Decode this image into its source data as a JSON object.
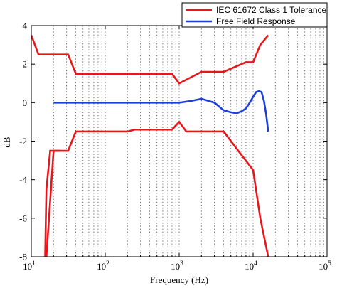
{
  "chart_data": {
    "type": "line",
    "xlabel": "Frequency (Hz)",
    "ylabel": "dB",
    "xscale": "log",
    "xlim": [
      10,
      100000
    ],
    "ylim": [
      -8,
      4
    ],
    "grid": "vertical dotted (minor decades)",
    "legend_position": "top-right",
    "y_ticks": [
      {
        "value": 4,
        "label": "4"
      },
      {
        "value": 2,
        "label": "2"
      },
      {
        "value": 0,
        "label": "0"
      },
      {
        "value": -2,
        "label": "-2"
      },
      {
        "value": -4,
        "label": "-4"
      },
      {
        "value": -6,
        "label": "-6"
      },
      {
        "value": -8,
        "label": "-8"
      }
    ],
    "x_ticks": [
      {
        "value": 10,
        "base": "10",
        "exp": "1"
      },
      {
        "value": 100,
        "base": "10",
        "exp": "2"
      },
      {
        "value": 1000,
        "base": "10",
        "exp": "3"
      },
      {
        "value": 10000,
        "base": "10",
        "exp": "4"
      },
      {
        "value": 100000,
        "base": "10",
        "exp": "5"
      }
    ],
    "series": [
      {
        "name": "IEC 61672 Class 1 Tolerance",
        "color": "#e8161b",
        "segments": [
          {
            "x": [
              10,
              12.5,
              16,
              20,
              25,
              31.5,
              40,
              800,
              1000,
              2000,
              4000,
              8000,
              10000,
              12500,
              16000
            ],
            "y": [
              3.5,
              2.5,
              2.5,
              2.5,
              2.5,
              2.5,
              1.5,
              1.5,
              1.0,
              1.6,
              1.6,
              2.1,
              2.1,
              3.0,
              3.5
            ]
          },
          {
            "x": [
              16,
              20,
              25,
              31.5,
              40,
              200,
              250,
              800,
              1000,
              1250,
              4000,
              6300,
              10000,
              12500,
              16000
            ],
            "y": [
              -8.0,
              -2.5,
              -2.5,
              -2.5,
              -1.5,
              -1.5,
              -1.4,
              -1.4,
              -1.0,
              -1.5,
              -1.5,
              -2.5,
              -3.5,
              -6.0,
              -8.0
            ]
          },
          {
            "x": [
              15.4,
              16,
              18,
              20,
              25
            ],
            "y": [
              -8.0,
              -4.5,
              -2.5,
              -2.5,
              -2.5
            ]
          }
        ]
      },
      {
        "name": "Free Field Response",
        "color": "#1b3fd8",
        "segments": [
          {
            "x": [
              20,
              100,
              500,
              1000,
              1500,
              2000,
              3000,
              4000,
              5000,
              6000,
              7000,
              8000,
              9000,
              10000,
              11000,
              12000,
              13000,
              14000,
              15000,
              16000
            ],
            "y": [
              0,
              0,
              0,
              0,
              0.1,
              0.2,
              0.0,
              -0.4,
              -0.5,
              -0.55,
              -0.45,
              -0.3,
              0.0,
              0.3,
              0.55,
              0.6,
              0.55,
              0.1,
              -0.6,
              -1.5
            ]
          }
        ]
      }
    ]
  }
}
